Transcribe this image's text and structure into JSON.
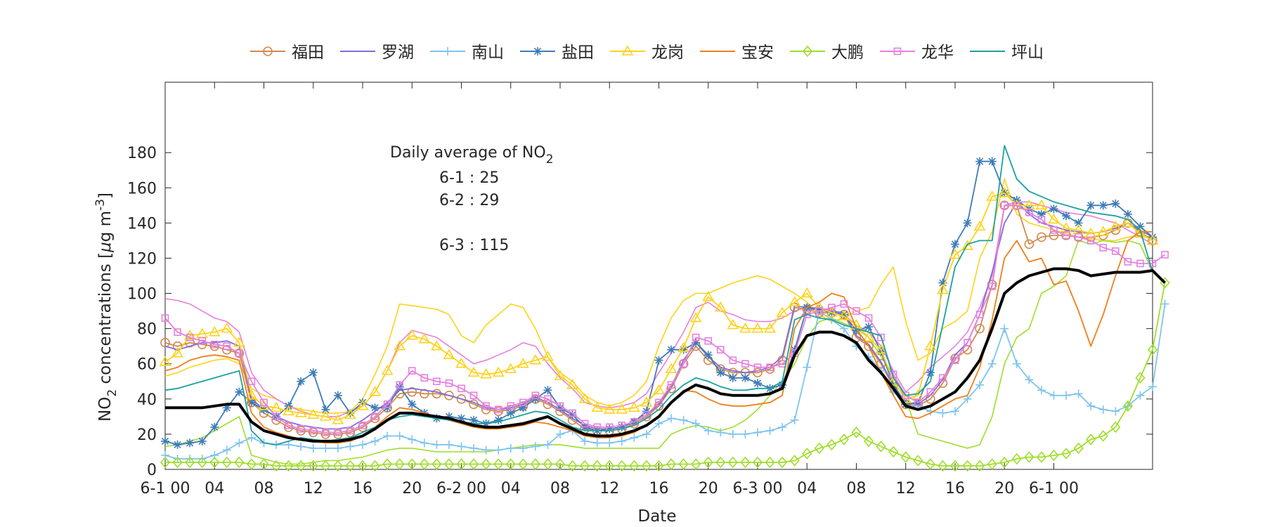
{
  "chart_data": {
    "type": "line",
    "xlabel": "Date",
    "ylabel_main": "NO",
    "ylabel_sub": "2",
    "ylabel_rest": " concentrations [",
    "ylabel_mu": "μ",
    "ylabel_unit": "g m",
    "ylabel_sup": "-3",
    "ylabel_close": "]",
    "xlim": [
      0,
      80
    ],
    "ylim": [
      0,
      220
    ],
    "yticks": [
      0,
      20,
      40,
      60,
      80,
      100,
      120,
      140,
      160,
      180
    ],
    "ytick_labels": [
      "0",
      "20",
      "40",
      "60",
      "80",
      "100",
      "120",
      "140",
      "160",
      "180"
    ],
    "xticks": [
      0,
      4,
      8,
      12,
      16,
      20,
      24,
      28,
      32,
      36,
      40,
      44,
      48,
      52,
      56,
      60,
      64,
      68,
      72
    ],
    "xtick_labels": [
      "6-1 00",
      "04",
      "08",
      "12",
      "16",
      "20",
      "6-2 00",
      "04",
      "08",
      "12",
      "16",
      "20",
      "6-3 00",
      "04",
      "08",
      "12",
      "16",
      "20",
      "6-1 00"
    ],
    "legend_location": "top-outside",
    "annotation": {
      "title": "Daily average of NO",
      "title_sub": "2",
      "lines": [
        "6-1 : 25",
        "6-2 : 29",
        "",
        "6-3 : 115"
      ]
    },
    "series": [
      {
        "name": "福田",
        "color": "#D08B4F",
        "marker": "circle",
        "values": [
          72,
          70,
          72,
          71,
          70,
          68,
          66,
          38,
          32,
          28,
          24,
          22,
          21,
          20,
          20,
          21,
          24,
          29,
          35,
          43,
          44,
          43,
          43,
          42,
          40,
          37,
          34,
          33,
          34,
          36,
          40,
          37,
          33,
          28,
          23,
          22,
          22,
          23,
          26,
          30,
          36,
          46,
          60,
          70,
          62,
          57,
          55,
          55,
          55,
          57,
          62,
          92,
          91,
          89,
          89,
          88,
          75,
          70,
          60,
          47,
          37,
          36,
          40,
          49,
          63,
          68,
          80,
          105,
          150,
          150,
          128,
          132,
          133,
          133,
          132,
          132,
          133,
          136,
          140,
          135,
          130
        ]
      },
      {
        "name": "罗湖",
        "color": "#7F6DDB",
        "marker": "none",
        "values": [
          70,
          68,
          70,
          72,
          72,
          73,
          70,
          40,
          34,
          30,
          27,
          25,
          24,
          23,
          23,
          24,
          28,
          33,
          38,
          45,
          46,
          45,
          44,
          42,
          40,
          38,
          35,
          34,
          35,
          37,
          41,
          38,
          34,
          29,
          25,
          23,
          23,
          24,
          27,
          31,
          37,
          47,
          62,
          72,
          64,
          58,
          56,
          55,
          56,
          58,
          64,
          93,
          92,
          90,
          90,
          89,
          76,
          71,
          61,
          48,
          38,
          37,
          42,
          51,
          65,
          72,
          88,
          112,
          140,
          152,
          145,
          140,
          138,
          136,
          135,
          134,
          135,
          137,
          140,
          136,
          132
        ]
      },
      {
        "name": "南山",
        "color": "#7FC4F0",
        "marker": "plus",
        "values": [
          8,
          6,
          6,
          6,
          8,
          11,
          15,
          18,
          15,
          14,
          14,
          13,
          12,
          12,
          12,
          13,
          14,
          16,
          19,
          19,
          17,
          15,
          14,
          14,
          13,
          12,
          11,
          11,
          12,
          12,
          13,
          14,
          20,
          22,
          16,
          15,
          15,
          16,
          18,
          20,
          26,
          29,
          28,
          26,
          22,
          21,
          20,
          20,
          21,
          22,
          24,
          28,
          58,
          90,
          85,
          80,
          70,
          64,
          56,
          44,
          38,
          36,
          33,
          32,
          33,
          40,
          48,
          60,
          80,
          60,
          51,
          45,
          42,
          42,
          43,
          36,
          34,
          33,
          36,
          42,
          47,
          94
        ]
      },
      {
        "name": "盐田",
        "color": "#3E7CB6",
        "marker": "asterisk",
        "values": [
          16,
          14,
          15,
          16,
          24,
          35,
          44,
          38,
          34,
          30,
          36,
          50,
          55,
          34,
          42,
          32,
          38,
          35,
          35,
          47,
          37,
          32,
          29,
          30,
          29,
          28,
          26,
          28,
          32,
          35,
          40,
          45,
          35,
          31,
          24,
          22,
          23,
          24,
          27,
          33,
          62,
          68,
          68,
          72,
          65,
          55,
          52,
          52,
          49,
          46,
          48,
          68,
          92,
          91,
          89,
          88,
          79,
          81,
          67,
          48,
          37,
          38,
          55,
          106,
          128,
          140,
          175,
          175,
          157,
          153,
          148,
          145,
          148,
          144,
          140,
          150,
          150,
          151,
          145,
          138,
          132
        ]
      },
      {
        "name": "龙岗",
        "color": "#FFD21A",
        "marker": "triangle",
        "values": [
          61,
          66,
          76,
          77,
          78,
          80,
          72,
          42,
          36,
          35,
          33,
          32,
          31,
          30,
          28,
          31,
          36,
          44,
          56,
          70,
          76,
          74,
          70,
          65,
          60,
          55,
          54,
          55,
          57,
          60,
          62,
          64,
          53,
          48,
          40,
          35,
          34,
          34,
          35,
          38,
          45,
          57,
          69,
          86,
          98,
          92,
          82,
          80,
          80,
          80,
          89,
          95,
          100,
          92,
          89,
          87,
          82,
          75,
          68,
          50,
          40,
          42,
          70,
          102,
          122,
          127,
          138,
          155,
          157,
          150,
          150,
          150,
          142,
          137,
          136,
          134,
          135,
          138,
          140,
          134,
          130
        ]
      },
      {
        "name": "宝安",
        "color": "#F07F1A",
        "marker": "none",
        "values": [
          56,
          58,
          62,
          64,
          65,
          64,
          62,
          32,
          24,
          21,
          19,
          17,
          16,
          15,
          15,
          16,
          19,
          24,
          30,
          35,
          34,
          32,
          30,
          28,
          26,
          24,
          23,
          23,
          24,
          25,
          27,
          26,
          24,
          22,
          19,
          18,
          18,
          19,
          21,
          25,
          30,
          38,
          45,
          44,
          40,
          37,
          36,
          36,
          37,
          38,
          42,
          80,
          92,
          95,
          100,
          98,
          80,
          70,
          55,
          42,
          30,
          29,
          32,
          36,
          40,
          42,
          58,
          85,
          120,
          130,
          118,
          120,
          105,
          107,
          90,
          70,
          88,
          110,
          130,
          135,
          135
        ]
      },
      {
        "name": "大鹏",
        "color": "#9FDE2A",
        "marker": "diamond",
        "values": [
          4,
          4,
          4,
          4,
          4,
          4,
          4,
          3,
          3,
          2,
          2,
          2,
          2,
          2,
          2,
          2,
          2,
          2,
          3,
          3,
          3,
          3,
          3,
          3,
          3,
          3,
          3,
          3,
          3,
          3,
          3,
          3,
          3,
          2,
          2,
          2,
          2,
          2,
          2,
          2,
          2,
          3,
          3,
          3,
          4,
          4,
          4,
          4,
          4,
          4,
          4,
          5,
          9,
          12,
          14,
          17,
          21,
          16,
          13,
          10,
          7,
          5,
          3,
          2,
          2,
          2,
          2,
          3,
          4,
          6,
          7,
          7,
          8,
          9,
          12,
          17,
          19,
          24,
          36,
          52,
          68,
          106
        ]
      },
      {
        "name": "龙华",
        "color": "#E680E0",
        "marker": "square",
        "values": [
          86,
          78,
          75,
          73,
          71,
          70,
          66,
          50,
          38,
          30,
          25,
          23,
          22,
          21,
          21,
          22,
          25,
          30,
          37,
          48,
          56,
          52,
          50,
          49,
          46,
          42,
          36,
          34,
          36,
          38,
          42,
          40,
          36,
          32,
          26,
          24,
          24,
          25,
          27,
          31,
          38,
          48,
          60,
          75,
          73,
          68,
          62,
          60,
          58,
          58,
          60,
          66,
          88,
          90,
          92,
          94,
          90,
          86,
          75,
          54,
          42,
          38,
          44,
          52,
          62,
          72,
          88,
          104,
          150,
          150,
          146,
          142,
          136,
          133,
          132,
          130,
          126,
          124,
          118,
          117,
          117,
          122
        ]
      },
      {
        "name": "坪山",
        "color": "#1EA0A0",
        "marker": "none",
        "values": [
          45,
          46,
          48,
          50,
          52,
          54,
          56,
          22,
          15,
          14,
          16,
          18,
          17,
          16,
          17,
          18,
          21,
          24,
          28,
          30,
          31,
          30,
          29,
          28,
          27,
          26,
          26,
          27,
          29,
          31,
          33,
          32,
          28,
          24,
          22,
          22,
          22,
          23,
          25,
          29,
          34,
          42,
          48,
          52,
          50,
          47,
          45,
          45,
          46,
          46,
          50,
          85,
          88,
          86,
          85,
          82,
          80,
          78,
          76,
          52,
          42,
          43,
          50,
          82,
          115,
          128,
          130,
          130,
          184,
          165,
          158,
          155,
          152,
          150,
          148,
          146,
          145,
          144,
          142,
          136,
          112
        ]
      },
      {
        "name": "",
        "color": "#000000",
        "marker": "none",
        "width": 4,
        "values": [
          35,
          35,
          35,
          35,
          36,
          37,
          37,
          27,
          22,
          20,
          18,
          17,
          16,
          16,
          16,
          17,
          19,
          23,
          28,
          32,
          32,
          31,
          30,
          29,
          27,
          25,
          24,
          24,
          25,
          26,
          28,
          30,
          26,
          23,
          20,
          19,
          19,
          20,
          22,
          25,
          30,
          38,
          44,
          48,
          46,
          43,
          42,
          42,
          42,
          43,
          46,
          65,
          76,
          78,
          78,
          76,
          72,
          62,
          55,
          46,
          36,
          34,
          36,
          40,
          44,
          52,
          62,
          80,
          100,
          106,
          110,
          112,
          114,
          114,
          113,
          110,
          111,
          112,
          112,
          112,
          113,
          106
        ]
      }
    ],
    "extra_lines": [
      {
        "color": "#FFD21A",
        "values": [
          53,
          55,
          58,
          60,
          62,
          63,
          60,
          46,
          42,
          40,
          36,
          34,
          33,
          32,
          32,
          33,
          40,
          54,
          70,
          94,
          93,
          92,
          91,
          88,
          76,
          72,
          82,
          88,
          94,
          92,
          80,
          64,
          55,
          50,
          42,
          38,
          36,
          38,
          42,
          50,
          70,
          86,
          96,
          100,
          100,
          103,
          106,
          108,
          110,
          108,
          104,
          100,
          95,
          88,
          84,
          86,
          90,
          92,
          105,
          115,
          84,
          62,
          66,
          80,
          84,
          90,
          120,
          135,
          165,
          145,
          140,
          138,
          136,
          134,
          132,
          131,
          130,
          130,
          132,
          133,
          132
        ]
      },
      {
        "name": "",
        "color": "#E680E0",
        "values": [
          97,
          96,
          94,
          90,
          86,
          84,
          78,
          55,
          45,
          40,
          36,
          33,
          31,
          30,
          30,
          33,
          36,
          44,
          56,
          72,
          79,
          77,
          75,
          70,
          65,
          60,
          62,
          65,
          68,
          72,
          70,
          60,
          52,
          46,
          38,
          36,
          35,
          36,
          38,
          43,
          55,
          66,
          78,
          92,
          95,
          90,
          88,
          85,
          84,
          84,
          86,
          90,
          92,
          92,
          90,
          88,
          82,
          78,
          70,
          56,
          44,
          50,
          58,
          64,
          70,
          78,
          92,
          110,
          150,
          152,
          152,
          150,
          148,
          146,
          145,
          144,
          142,
          140,
          136,
          132,
          128
        ]
      },
      {
        "name": "",
        "color": "#9FDE2A",
        "values": [
          13,
          14,
          16,
          18,
          22,
          26,
          30,
          8,
          6,
          4,
          3,
          3,
          4,
          5,
          5,
          6,
          7,
          9,
          11,
          12,
          12,
          11,
          10,
          10,
          10,
          10,
          10,
          11,
          12,
          13,
          14,
          14,
          14,
          13,
          12,
          12,
          12,
          12,
          12,
          12,
          12,
          20,
          23,
          25,
          24,
          22,
          24,
          28,
          34,
          42,
          50,
          60,
          75,
          84,
          86,
          83,
          80,
          75,
          64,
          54,
          40,
          20,
          18,
          16,
          14,
          12,
          14,
          30,
          60,
          75,
          80,
          100,
          104,
          110,
          130,
          128,
          130,
          129,
          130,
          128,
          112,
          106
        ]
      }
    ]
  }
}
